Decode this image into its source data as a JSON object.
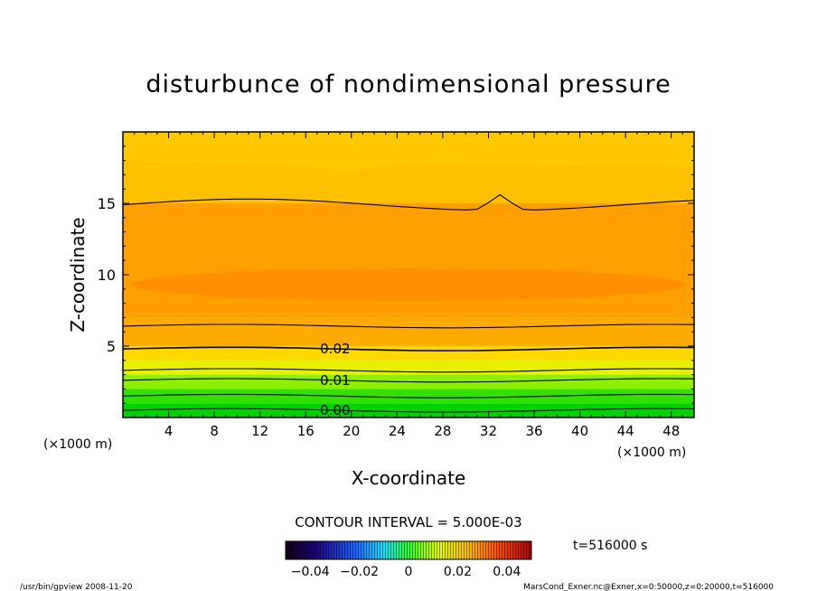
{
  "chart_data": {
    "type": "heatmap",
    "title": "disturbunce of nondimensional pressure",
    "xlabel": "X-coordinate",
    "ylabel": "Z-coordinate",
    "x_unit": "(×1000 m)",
    "z_unit": "(×1000 m)",
    "xlim": [
      0,
      50
    ],
    "ylim": [
      0,
      20
    ],
    "x_ticks": [
      4,
      8,
      12,
      16,
      20,
      24,
      28,
      32,
      36,
      40,
      44,
      48
    ],
    "y_ticks": [
      5,
      10,
      15
    ],
    "contour_interval_text": "CONTOUR INTERVAL = 5.000E-03",
    "contour_labels": [
      {
        "text": "0.02",
        "x": 17.1,
        "z": 4.8
      },
      {
        "text": "0.01",
        "x": 17.1,
        "z": 2.6
      },
      {
        "text": "0.00",
        "x": 17.1,
        "z": 0.5
      }
    ],
    "colorbar": {
      "tick_labels": [
        "−0.04",
        "−0.02",
        "0",
        "0.02",
        "0.04"
      ],
      "range": [
        -0.05,
        0.05
      ]
    },
    "time_label": "t=516000 s",
    "footer_left": "/usr/bin/gpview   2008-11-20",
    "footer_right": "MarsCond_Exner.nc@Exner,x=0:50000,z=0:20000,t=516000",
    "colors": {
      "band_0_1": "#00d400",
      "band_1_2": "#33e000",
      "band_2_3": "#90ee00",
      "band_3_4": "#e6f000",
      "band_4_5": "#ffd800",
      "band_5_7": "#ffaa00",
      "band_7_12": "#ff9f00",
      "core": "#ff8c00",
      "band_15_20": "#ffc000"
    }
  }
}
